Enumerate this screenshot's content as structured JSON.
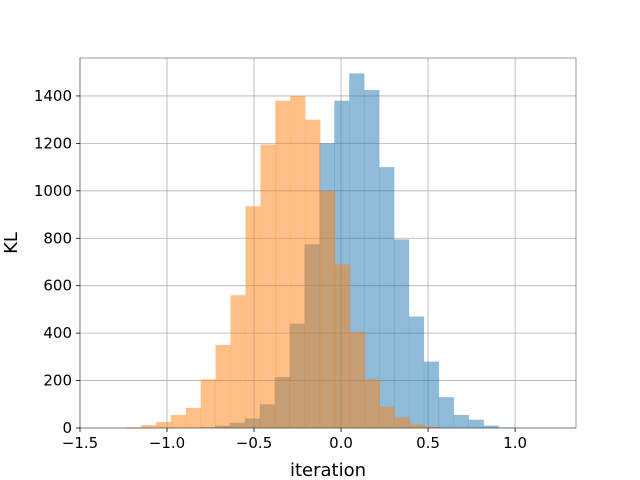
{
  "chart_data": {
    "type": "bar",
    "title": "",
    "xlabel": "iteration",
    "ylabel": "KL",
    "xlim": [
      -1.5,
      1.35
    ],
    "ylim": [
      0,
      1560
    ],
    "x_ticks": [
      -1.5,
      -1.0,
      -0.5,
      0.0,
      0.5,
      1.0
    ],
    "x_tick_labels": [
      "−1.5",
      "−1.0",
      "−0.5",
      "0.0",
      "0.5",
      "1.0"
    ],
    "y_ticks": [
      0,
      200,
      400,
      600,
      800,
      1000,
      1200,
      1400
    ],
    "y_tick_labels": [
      "0",
      "200",
      "400",
      "600",
      "800",
      "1000",
      "1200",
      "1400"
    ],
    "grid": true,
    "legend": "none",
    "series": [
      {
        "color": "#1f77b4",
        "opacity": 0.5,
        "bin_width": 0.0857,
        "bins": [
          {
            "x0": -0.81,
            "value": 3
          },
          {
            "x0": -0.724,
            "value": 10
          },
          {
            "x0": -0.639,
            "value": 22
          },
          {
            "x0": -0.553,
            "value": 40
          },
          {
            "x0": -0.467,
            "value": 100
          },
          {
            "x0": -0.381,
            "value": 215
          },
          {
            "x0": -0.296,
            "value": 440
          },
          {
            "x0": -0.21,
            "value": 775
          },
          {
            "x0": -0.124,
            "value": 1200
          },
          {
            "x0": -0.039,
            "value": 1380
          },
          {
            "x0": 0.047,
            "value": 1495
          },
          {
            "x0": 0.133,
            "value": 1425
          },
          {
            "x0": 0.219,
            "value": 1100
          },
          {
            "x0": 0.304,
            "value": 795
          },
          {
            "x0": 0.39,
            "value": 470
          },
          {
            "x0": 0.476,
            "value": 280
          },
          {
            "x0": 0.561,
            "value": 130
          },
          {
            "x0": 0.647,
            "value": 55
          },
          {
            "x0": 0.733,
            "value": 35
          },
          {
            "x0": 0.819,
            "value": 10
          },
          {
            "x0": 0.904,
            "value": 2
          }
        ]
      },
      {
        "color": "#ff7f0e",
        "opacity": 0.5,
        "bin_width": 0.0857,
        "bins": [
          {
            "x0": -1.235,
            "value": 3
          },
          {
            "x0": -1.149,
            "value": 12
          },
          {
            "x0": -1.063,
            "value": 25
          },
          {
            "x0": -0.978,
            "value": 55
          },
          {
            "x0": -0.892,
            "value": 85
          },
          {
            "x0": -0.806,
            "value": 205
          },
          {
            "x0": -0.721,
            "value": 350
          },
          {
            "x0": -0.635,
            "value": 560
          },
          {
            "x0": -0.549,
            "value": 935
          },
          {
            "x0": -0.463,
            "value": 1195
          },
          {
            "x0": -0.378,
            "value": 1380
          },
          {
            "x0": -0.292,
            "value": 1400
          },
          {
            "x0": -0.206,
            "value": 1300
          },
          {
            "x0": -0.121,
            "value": 1000
          },
          {
            "x0": -0.035,
            "value": 690
          },
          {
            "x0": 0.051,
            "value": 405
          },
          {
            "x0": 0.137,
            "value": 205
          },
          {
            "x0": 0.222,
            "value": 90
          },
          {
            "x0": 0.308,
            "value": 45
          },
          {
            "x0": 0.394,
            "value": 15
          },
          {
            "x0": 0.479,
            "value": 5
          }
        ]
      }
    ]
  }
}
